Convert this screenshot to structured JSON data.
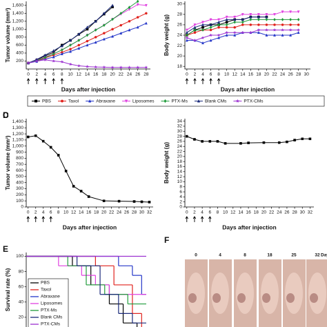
{
  "chart_data": [
    {
      "type": "line",
      "ylabel": "Tumor volume (mm³)",
      "xlabel": "Days after injection",
      "xlim": [
        -0.5,
        29
      ],
      "ylim": [
        0,
        1700
      ],
      "xticks": [
        0,
        2,
        4,
        6,
        8,
        10,
        12,
        14,
        16,
        18,
        20,
        22,
        24,
        26,
        28
      ],
      "yticks": [
        200,
        400,
        600,
        800,
        {
          "value": 1000,
          "label": "1,000"
        },
        {
          "value": 1200,
          "label": "1,200"
        },
        {
          "value": 1400,
          "label": "1,400"
        },
        {
          "value": 1600,
          "label": "1,600"
        }
      ],
      "dosing_days": [
        0,
        2,
        4,
        6,
        8
      ],
      "x": [
        0,
        2,
        4,
        6,
        8,
        10,
        12,
        14,
        16,
        18,
        20,
        22,
        24,
        26,
        28
      ],
      "series": [
        {
          "name": "PBS",
          "color": "#000000",
          "marker": "square",
          "values": [
            150,
            230,
            330,
            420,
            600,
            720,
            870,
            1000,
            1200,
            1380,
            1560,
            null,
            null,
            null,
            null
          ]
        },
        {
          "name": "Taxol",
          "color": "#e0201b",
          "marker": "circle",
          "values": [
            150,
            200,
            280,
            350,
            420,
            500,
            600,
            700,
            800,
            900,
            1000,
            1100,
            1200,
            1300,
            1400
          ]
        },
        {
          "name": "Abraxane",
          "color": "#2436c8",
          "marker": "triangle-up",
          "values": [
            150,
            190,
            250,
            300,
            380,
            440,
            520,
            600,
            670,
            750,
            820,
            900,
            980,
            1050,
            1150
          ]
        },
        {
          "name": "Liposomes",
          "color": "#e040e0",
          "marker": "triangle-down",
          "values": [
            150,
            220,
            300,
            380,
            480,
            600,
            720,
            850,
            980,
            1100,
            1250,
            1380,
            1500,
            1620,
            1600
          ]
        },
        {
          "name": "PTX-Ms",
          "color": "#1f9b3a",
          "marker": "diamond",
          "values": [
            150,
            210,
            290,
            380,
            480,
            600,
            720,
            850,
            980,
            1100,
            1250,
            1400,
            1550,
            1700,
            null
          ]
        },
        {
          "name": "Blank CMs",
          "color": "#1a2a7a",
          "marker": "triangle-up",
          "values": [
            150,
            240,
            350,
            460,
            580,
            720,
            880,
            1050,
            1200,
            1400,
            1600,
            null,
            null,
            null,
            null
          ]
        },
        {
          "name": "PTX-CMs",
          "color": "#9b30d0",
          "marker": "star",
          "values": [
            150,
            200,
            230,
            200,
            180,
            120,
            80,
            60,
            50,
            45,
            40,
            40,
            40,
            40,
            40
          ]
        }
      ]
    },
    {
      "type": "line",
      "ylabel": "Body weight (g)",
      "xlabel": "Days after injection",
      "xlim": [
        -0.5,
        31
      ],
      "ylim": [
        17.5,
        30.5
      ],
      "xticks": [
        0,
        2,
        4,
        6,
        8,
        10,
        12,
        14,
        16,
        18,
        20,
        22,
        24,
        26,
        28,
        30
      ],
      "yticks": [
        18,
        20,
        22,
        24,
        26,
        28,
        30
      ],
      "dosing_days": [
        0,
        2,
        4,
        6,
        8
      ],
      "x": [
        0,
        2,
        4,
        6,
        8,
        10,
        12,
        14,
        16,
        18,
        20,
        22,
        24,
        26,
        28
      ],
      "series": [
        {
          "color": "#000000",
          "marker": "square",
          "values": [
            24,
            25,
            25.5,
            26,
            26,
            26.5,
            27,
            27,
            27.5,
            27.5,
            27.5,
            null,
            null,
            null,
            null
          ]
        },
        {
          "color": "#e0201b",
          "marker": "circle",
          "values": [
            24,
            24.5,
            25,
            25,
            25.5,
            25.5,
            25.5,
            26,
            26,
            26,
            26,
            26,
            26,
            26,
            26
          ]
        },
        {
          "color": "#2436c8",
          "marker": "triangle-up",
          "values": [
            23,
            23,
            22.5,
            23,
            23.5,
            24,
            24,
            24.5,
            24.5,
            24.5,
            24,
            24,
            24,
            24,
            24.5
          ]
        },
        {
          "color": "#e040e0",
          "marker": "triangle-down",
          "values": [
            25,
            26,
            26.5,
            27,
            27,
            27.5,
            27.5,
            28,
            28,
            28,
            28,
            28,
            28.5,
            28.5,
            28.5
          ]
        },
        {
          "color": "#1f9b3a",
          "marker": "diamond",
          "values": [
            24,
            25,
            25,
            25.5,
            26,
            26,
            26.5,
            26.5,
            27,
            27,
            27,
            27,
            27,
            27,
            27
          ]
        },
        {
          "color": "#1a2a7a",
          "marker": "triangle-up",
          "values": [
            24.5,
            25.5,
            26,
            26,
            26.5,
            27,
            27,
            27,
            27.5,
            27.5,
            27.5,
            null,
            null,
            null,
            null
          ]
        },
        {
          "color": "#9b30d0",
          "marker": "star",
          "values": [
            23.5,
            23,
            23.5,
            24,
            24,
            24.5,
            24.5,
            24.5,
            24.5,
            25,
            25,
            25,
            25,
            25,
            25
          ]
        }
      ]
    },
    {
      "type": "line",
      "panel": "C",
      "ylabel": "Tumor volume (mm³)",
      "xlabel": "Days after injection",
      "xlim": [
        -0.5,
        33
      ],
      "ylim": [
        0,
        1450
      ],
      "xticks": [
        0,
        2,
        4,
        6,
        8,
        10,
        12,
        14,
        16,
        18,
        20,
        22,
        24,
        26,
        28,
        30,
        32
      ],
      "yticks": [
        0,
        100,
        200,
        300,
        400,
        500,
        600,
        700,
        800,
        900,
        {
          "value": 1000,
          "label": "1,000"
        },
        {
          "value": 1100,
          "label": "1,100"
        },
        {
          "value": 1200,
          "label": "1,200"
        },
        {
          "value": 1300,
          "label": "1,300"
        },
        {
          "value": 1400,
          "label": "1,400"
        }
      ],
      "dosing_days": [
        0,
        2,
        4,
        6
      ],
      "x": [
        0,
        2,
        4,
        6,
        8,
        10,
        12,
        14,
        16,
        20,
        24,
        28,
        30,
        32
      ],
      "series": [
        {
          "color": "#000000",
          "marker": "square",
          "values": [
            1150,
            1170,
            1080,
            980,
            850,
            590,
            340,
            260,
            170,
            100,
            95,
            90,
            85,
            80
          ]
        }
      ]
    },
    {
      "type": "line",
      "panel": "D",
      "ylabel": "Body weight (g)",
      "xlabel": "Days after injection",
      "xlim": [
        -0.5,
        33
      ],
      "ylim": [
        0,
        35
      ],
      "xticks": [
        0,
        2,
        4,
        6,
        8,
        10,
        12,
        14,
        16,
        18,
        20,
        22,
        24,
        26,
        28,
        30,
        32
      ],
      "yticks": [
        0,
        2,
        4,
        6,
        8,
        10,
        12,
        14,
        16,
        18,
        20,
        22,
        24,
        26,
        28,
        30,
        32,
        34
      ],
      "dosing_days": [
        0,
        2,
        4,
        6
      ],
      "x": [
        0,
        2,
        4,
        6,
        8,
        10,
        14,
        16,
        20,
        24,
        26,
        28,
        30,
        32
      ],
      "series": [
        {
          "color": "#000000",
          "marker": "square",
          "values": [
            28,
            26.8,
            26,
            26,
            26,
            25.2,
            25.2,
            25.4,
            25.5,
            25.5,
            25.8,
            26.5,
            27,
            27
          ]
        }
      ]
    },
    {
      "type": "step",
      "panel": "E",
      "ylabel": "Survival rate (%)",
      "legend": "lower left",
      "xlim": [
        0,
        52
      ],
      "ylim": [
        0,
        105
      ],
      "yticks": [
        0,
        20,
        40,
        60,
        80,
        100
      ],
      "series": [
        {
          "name": "PBS",
          "color": "#000000",
          "x": [
            0,
            20,
            28,
            36,
            42,
            48
          ],
          "values": [
            100,
            87.5,
            62.5,
            37.5,
            12.5,
            0
          ]
        },
        {
          "name": "Taxol",
          "color": "#e0201b",
          "x": [
            0,
            30,
            38,
            46,
            50
          ],
          "values": [
            100,
            87.5,
            62.5,
            25,
            0
          ]
        },
        {
          "name": "Abraxane",
          "color": "#2436c8",
          "x": [
            0,
            40,
            46,
            50
          ],
          "values": [
            100,
            87.5,
            75,
            50
          ]
        },
        {
          "name": "Liposomes",
          "color": "#e040e0",
          "x": [
            0,
            14,
            24,
            30,
            36
          ],
          "values": [
            100,
            87.5,
            75,
            62.5,
            50
          ]
        },
        {
          "name": "PTX-Ms",
          "color": "#1f9b3a",
          "x": [
            0,
            18,
            26,
            34,
            44
          ],
          "values": [
            100,
            87.5,
            62.5,
            50,
            37.5
          ]
        },
        {
          "name": "Blank CMs",
          "color": "#1a2a7a",
          "x": [
            0,
            22,
            32,
            40,
            46
          ],
          "values": [
            100,
            87.5,
            50,
            25,
            12.5
          ]
        },
        {
          "name": "PTX-CMs",
          "color": "#9b30d0",
          "x": [
            0
          ],
          "values": [
            100
          ]
        }
      ]
    }
  ],
  "photos": {
    "panel": "F",
    "days": [
      "0",
      "4",
      "8",
      "18",
      "25",
      "32"
    ],
    "unit": "Days"
  }
}
